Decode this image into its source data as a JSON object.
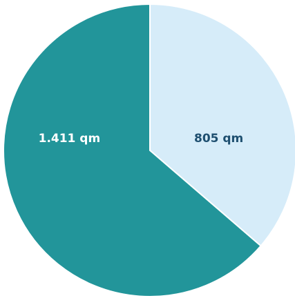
{
  "chart_data": {
    "type": "pie",
    "slices": [
      {
        "label": "805 qm",
        "value": 805,
        "color": "#d6ecf9",
        "label_color": "#1e4f70"
      },
      {
        "label": "1.411 qm",
        "value": 1411,
        "color": "#22959a",
        "label_color": "#ffffff"
      }
    ],
    "start_angle_deg": 0,
    "direction": "clockwise",
    "legend": "none"
  }
}
